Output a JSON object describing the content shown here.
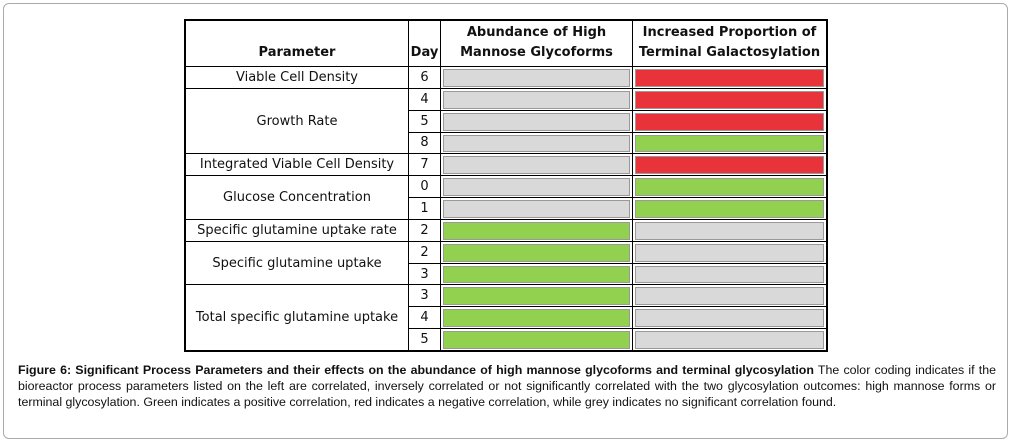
{
  "table": {
    "headers": [
      "Parameter",
      "Day",
      "Abundance of High Mannose Glycoforms",
      "Increased Proportion of Terminal Galactosylation"
    ],
    "groups": [
      {
        "parameter": "Viable Cell Density",
        "rows": [
          {
            "day": 6,
            "colors": [
              "#d9d9d9",
              "#e8333a"
            ]
          }
        ]
      },
      {
        "parameter": "Growth Rate",
        "rows": [
          {
            "day": 4,
            "colors": [
              "#d9d9d9",
              "#e8333a"
            ]
          },
          {
            "day": 5,
            "colors": [
              "#d9d9d9",
              "#e8333a"
            ]
          },
          {
            "day": 8,
            "colors": [
              "#d9d9d9",
              "#92d050"
            ]
          }
        ]
      },
      {
        "parameter": "Integrated Viable Cell Density",
        "rows": [
          {
            "day": 7,
            "colors": [
              "#d9d9d9",
              "#e8333a"
            ]
          }
        ]
      },
      {
        "parameter": "Glucose Concentration",
        "rows": [
          {
            "day": 0,
            "colors": [
              "#d9d9d9",
              "#92d050"
            ]
          },
          {
            "day": 1,
            "colors": [
              "#d9d9d9",
              "#92d050"
            ]
          }
        ]
      },
      {
        "parameter": "Specific glutamine uptake rate",
        "rows": [
          {
            "day": 2,
            "colors": [
              "#92d050",
              "#d9d9d9"
            ]
          }
        ]
      },
      {
        "parameter": "Specific glutamine uptake",
        "rows": [
          {
            "day": 2,
            "colors": [
              "#92d050",
              "#d9d9d9"
            ]
          },
          {
            "day": 3,
            "colors": [
              "#92d050",
              "#d9d9d9"
            ]
          }
        ]
      },
      {
        "parameter": "Total specific glutamine uptake",
        "rows": [
          {
            "day": 3,
            "colors": [
              "#92d050",
              "#d9d9d9"
            ]
          },
          {
            "day": 4,
            "colors": [
              "#92d050",
              "#d9d9d9"
            ]
          },
          {
            "day": 5,
            "colors": [
              "#92d050",
              "#d9d9d9"
            ]
          }
        ]
      }
    ]
  },
  "caption": {
    "label": "Figure 6: Significant Process Parameters and their effects on the abundance of high mannose glycoforms and terminal glycosylation",
    "text": "The color coding indicates if the bioreactor process parameters listed on the left are correlated, inversely correlated or not significantly correlated with the two glycosylation outcomes: high mannose forms or terminal glycosylation. Green indicates a positive correlation, red indicates a negative correlation, while grey indicates no significant correlation found."
  }
}
